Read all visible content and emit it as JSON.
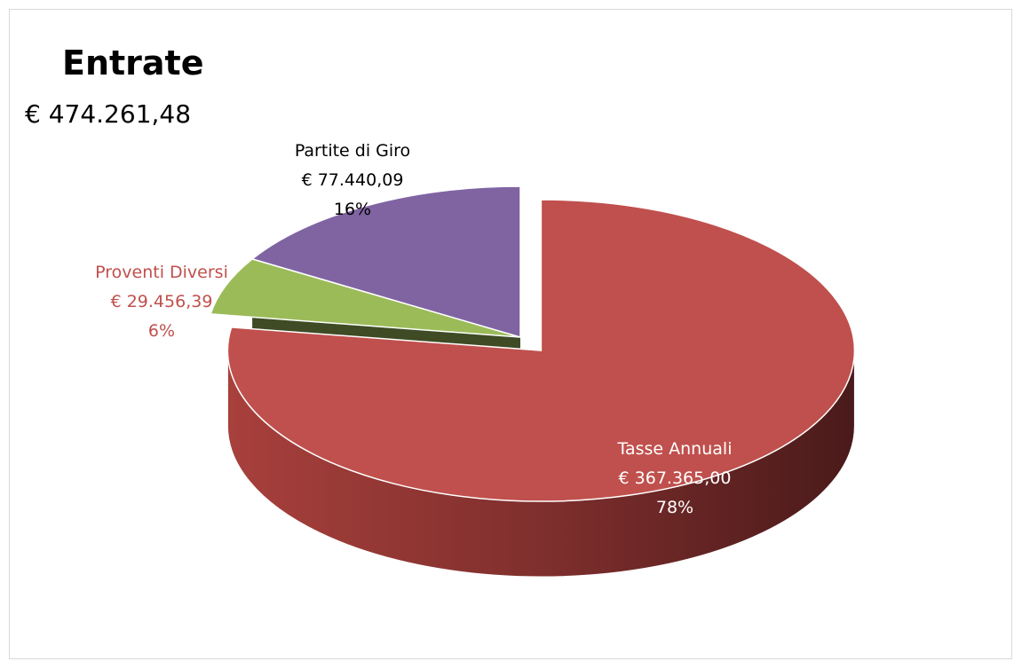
{
  "chart_data": {
    "type": "pie",
    "title": "Entrate",
    "total": "€ 474.261,48",
    "slices": [
      {
        "name": "Tasse Annuali",
        "value": 367365.0,
        "value_label": "€ 367.365,00",
        "percent": "78%",
        "color": "#c0504d",
        "label_color": "#ffffff"
      },
      {
        "name": "Proventi Diversi",
        "value": 29456.39,
        "value_label": "€ 29.456,39",
        "percent": "6%",
        "color": "#9bbb59",
        "label_color": "#c0504d"
      },
      {
        "name": "Partite di Giro",
        "value": 77440.09,
        "value_label": "€ 77.440,09",
        "percent": "16%",
        "color": "#8064a2",
        "label_color": "#000000"
      }
    ],
    "exploded": "Tasse Annuali",
    "style": "3d"
  }
}
